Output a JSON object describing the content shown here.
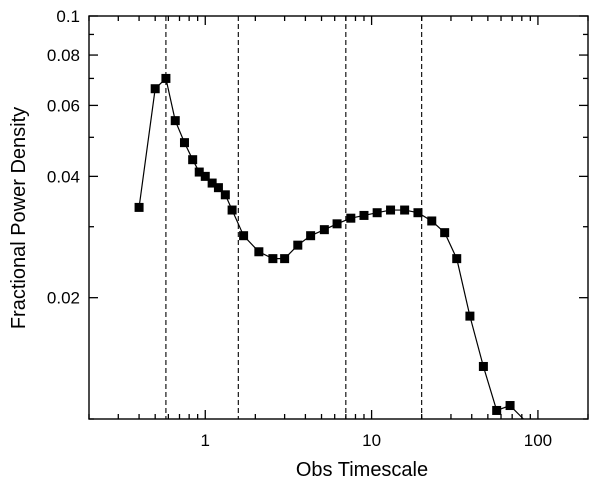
{
  "chart_data": {
    "type": "scatter",
    "xlabel": "Obs Timescale",
    "ylabel": "Fractional Power Density",
    "xscale": "log",
    "yscale": "log",
    "xlim": [
      0.2,
      200
    ],
    "ylim": [
      0.01,
      0.1
    ],
    "x_ticks": [
      {
        "value": 1,
        "label": "1"
      },
      {
        "value": 10,
        "label": "10"
      },
      {
        "value": 100,
        "label": "100"
      }
    ],
    "y_ticks": [
      {
        "value": 0.02,
        "label": "0.02"
      },
      {
        "value": 0.04,
        "label": "0.04"
      },
      {
        "value": 0.06,
        "label": "0.06"
      },
      {
        "value": 0.08,
        "label": "0.08"
      },
      {
        "value": 0.1,
        "label": "0.1"
      }
    ],
    "vertical_lines": [
      0.58,
      1.58,
      7.0,
      20.0
    ],
    "grid": false,
    "marker": "filled-square",
    "line_color": "#000000",
    "series": [
      {
        "x": [
          0.4,
          0.5,
          0.58,
          0.66,
          0.75,
          0.84,
          0.92,
          1.0,
          1.1,
          1.2,
          1.32,
          1.45,
          1.7,
          2.1,
          2.55,
          3.0,
          3.6,
          4.3,
          5.2,
          6.2,
          7.5,
          9.0,
          10.8,
          13.0,
          15.8,
          19.0,
          23.0,
          27.5,
          32.5,
          39.0,
          47.0,
          56.5,
          68.0,
          100.0
        ],
        "y": [
          0.0335,
          0.066,
          0.07,
          0.055,
          0.0485,
          0.044,
          0.041,
          0.04,
          0.0385,
          0.0375,
          0.036,
          0.033,
          0.0285,
          0.026,
          0.025,
          0.025,
          0.027,
          0.0285,
          0.0295,
          0.0305,
          0.0315,
          0.032,
          0.0325,
          0.033,
          0.033,
          0.0325,
          0.031,
          0.029,
          0.025,
          0.018,
          0.0135,
          0.0105,
          0.0108,
          0.0092
        ]
      }
    ]
  }
}
